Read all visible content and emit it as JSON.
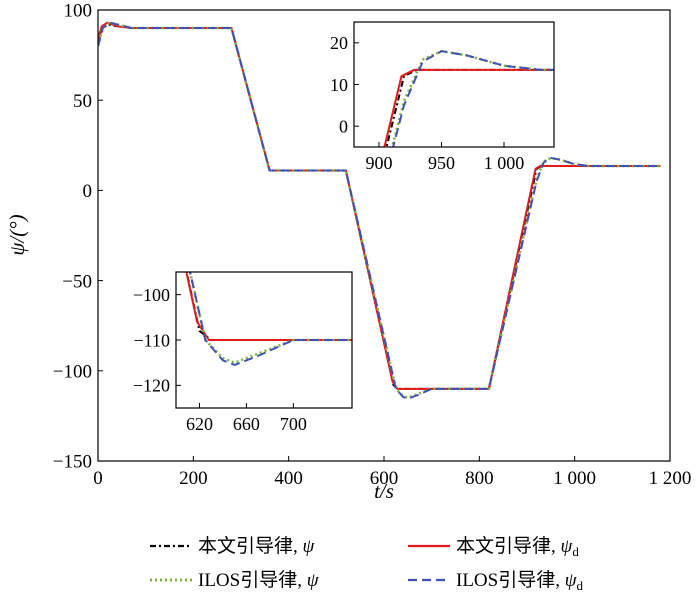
{
  "chart_data": {
    "type": "line",
    "xlabel": "t/s",
    "ylabel": "ψ/(°)",
    "xlim": [
      0,
      1200
    ],
    "ylim": [
      -150,
      100
    ],
    "xticks": [
      0,
      200,
      400,
      600,
      800,
      1000,
      1200
    ],
    "xtick_labels": [
      "0",
      "200",
      "400",
      "600",
      "800",
      "1 000",
      "1 200"
    ],
    "yticks": [
      100,
      50,
      0,
      -50,
      -100,
      -150
    ],
    "ytick_labels": [
      "100",
      "50",
      "0",
      "−50",
      "−100",
      "−150"
    ],
    "legend_position": "bottom",
    "series": [
      {
        "name": "本文引导律, ψ",
        "legend_prefix": "本文引导律, ",
        "legend_sym": "ψ",
        "legend_sub": "",
        "color": "#000000",
        "dash": "6,3,2,3",
        "x": [
          0,
          8,
          20,
          40,
          70,
          100,
          200,
          280,
          360,
          380,
          400,
          520,
          620,
          630,
          660,
          700,
          820,
          920,
          930,
          960,
          1000,
          1180
        ],
        "y": [
          82,
          90,
          92,
          91,
          90,
          90,
          90,
          90,
          11,
          11,
          11,
          11,
          -108,
          -110,
          -110,
          -110,
          -110,
          12,
          13.5,
          13.5,
          13.5,
          13.5
        ]
      },
      {
        "name": "本文引导律, ψd",
        "legend_prefix": "本文引导律, ",
        "legend_sym": "ψ",
        "legend_sub": "d",
        "color": "#e31a1c",
        "dash": "",
        "x": [
          0,
          8,
          20,
          40,
          70,
          100,
          200,
          280,
          360,
          380,
          400,
          520,
          618,
          628,
          660,
          700,
          820,
          918,
          928,
          960,
          1000,
          1180
        ],
        "y": [
          84,
          91,
          93,
          91,
          90,
          90,
          90,
          90,
          11,
          11,
          11,
          11,
          -106,
          -110,
          -110,
          -110,
          -110,
          12,
          13.5,
          13.5,
          13.5,
          13.5
        ]
      },
      {
        "name": "ILOS引导律, ψ",
        "legend_prefix": "ILOS引导律, ",
        "legend_sym": "ψ",
        "legend_sub": "",
        "color": "#7cb342",
        "dash": "2,3",
        "x": [
          0,
          10,
          25,
          40,
          70,
          100,
          200,
          280,
          360,
          380,
          400,
          520,
          625,
          640,
          650,
          670,
          700,
          820,
          920,
          935,
          950,
          970,
          1000,
          1030,
          1180
        ],
        "y": [
          80,
          90,
          93,
          92,
          90,
          90,
          90,
          90,
          11,
          11,
          11,
          11,
          -110,
          -114,
          -115,
          -113,
          -110,
          -110,
          6,
          16,
          18,
          17,
          14.5,
          13.5,
          13.5
        ]
      },
      {
        "name": "ILOS引导律, ψd",
        "legend_prefix": "ILOS引导律, ",
        "legend_sym": "ψ",
        "legend_sub": "d",
        "color": "#3f51b5",
        "dash": "9,5",
        "x": [
          0,
          10,
          25,
          40,
          70,
          100,
          200,
          280,
          360,
          380,
          400,
          520,
          625,
          640,
          650,
          670,
          700,
          820,
          920,
          935,
          950,
          970,
          1000,
          1030,
          1180
        ],
        "y": [
          80,
          90,
          93,
          92,
          90,
          90,
          90,
          90,
          11,
          11,
          11,
          11,
          -110,
          -114.5,
          -115.5,
          -113.5,
          -110,
          -110,
          5,
          15.5,
          18,
          17,
          14.5,
          13.5,
          13.5
        ]
      }
    ],
    "insets": [
      {
        "name": "upper-inset",
        "xlim": [
          880,
          1040
        ],
        "ylim": [
          -5,
          25
        ],
        "xticks": [
          900,
          950,
          1000
        ],
        "xtick_labels": [
          "900",
          "950",
          "1 000"
        ],
        "yticks": [
          20,
          10,
          0
        ],
        "ytick_labels": [
          "20",
          "10",
          "0"
        ]
      },
      {
        "name": "lower-inset",
        "xlim": [
          600,
          750
        ],
        "ylim": [
          -125,
          -95
        ],
        "xticks": [
          620,
          660,
          700
        ],
        "xtick_labels": [
          "620",
          "660",
          "700"
        ],
        "yticks": [
          -100,
          -110,
          -120
        ],
        "ytick_labels": [
          "−100",
          "−110",
          "−120"
        ]
      }
    ]
  }
}
